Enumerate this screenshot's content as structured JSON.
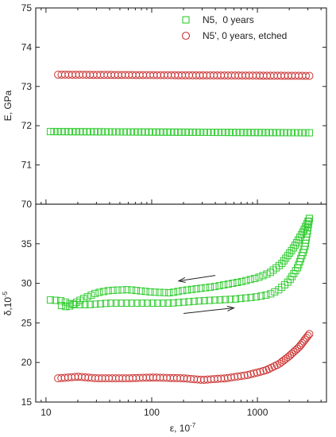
{
  "chart_data": [
    {
      "type": "scatter",
      "panel": "top",
      "xlabel": "",
      "ylabel": "E, GPa",
      "xscale": "log",
      "xlim": [
        8,
        4500
      ],
      "ylim": [
        70,
        75
      ],
      "yticks": [
        70,
        71,
        72,
        73,
        74,
        75
      ],
      "grid": false,
      "legend_position": "top-right",
      "series": [
        {
          "name": "N5,  0 years",
          "marker": "square",
          "color": "#33cc33",
          "x_range": [
            11,
            3100
          ],
          "x_points": 72,
          "y_start": 71.85,
          "y_end": 71.82
        },
        {
          "name": "N5', 0 years, etched",
          "marker": "circle",
          "color": "#cc3333",
          "x_range": [
            13,
            3100
          ],
          "x_points": 72,
          "y_start": 73.3,
          "y_end": 73.27
        }
      ]
    },
    {
      "type": "scatter",
      "panel": "bottom",
      "xlabel": "ε, 10⁻⁷",
      "ylabel": "δ,10⁻⁵",
      "xscale": "log",
      "xlim": [
        8,
        4500
      ],
      "ylim": [
        15,
        40
      ],
      "xticks": [
        10,
        100,
        1000
      ],
      "yticks": [
        15,
        20,
        25,
        30,
        35
      ],
      "grid": false,
      "series": [
        {
          "name": "",
          "marker": "square",
          "color": "#33cc33",
          "curve_lower": [
            [
              11,
              27.9
            ],
            [
              14,
              27.8
            ],
            [
              18,
              27.3
            ],
            [
              25,
              27.3
            ],
            [
              40,
              27.5
            ],
            [
              70,
              27.5
            ],
            [
              150,
              27.5
            ],
            [
              300,
              27.8
            ],
            [
              600,
              28.0
            ],
            [
              1000,
              28.3
            ],
            [
              1300,
              28.6
            ],
            [
              1600,
              29.2
            ],
            [
              2000,
              30.3
            ],
            [
              2400,
              32.0
            ],
            [
              2800,
              34.5
            ],
            [
              3100,
              38.2
            ]
          ],
          "curve_upper": [
            [
              3100,
              38.2
            ],
            [
              2700,
              36.5
            ],
            [
              2200,
              34.5
            ],
            [
              1700,
              32.5
            ],
            [
              1300,
              31.3
            ],
            [
              1000,
              30.7
            ],
            [
              700,
              30.2
            ],
            [
              400,
              29.6
            ],
            [
              200,
              29.1
            ],
            [
              150,
              28.8
            ],
            [
              100,
              28.9
            ],
            [
              60,
              29.2
            ],
            [
              40,
              29.1
            ],
            [
              30,
              28.8
            ],
            [
              22,
              28.0
            ],
            [
              16,
              27.0
            ],
            [
              14,
              27.2
            ]
          ]
        },
        {
          "name": "",
          "marker": "circle",
          "color": "#cc3333",
          "curve": [
            [
              13,
              18.0
            ],
            [
              20,
              18.2
            ],
            [
              30,
              18.0
            ],
            [
              60,
              18.0
            ],
            [
              100,
              18.1
            ],
            [
              200,
              18.0
            ],
            [
              300,
              17.8
            ],
            [
              500,
              18.0
            ],
            [
              800,
              18.4
            ],
            [
              1200,
              19.0
            ],
            [
              1600,
              19.8
            ],
            [
              2000,
              20.8
            ],
            [
              2500,
              22.0
            ],
            [
              3100,
              23.6
            ]
          ]
        }
      ],
      "annotations": [
        {
          "type": "arrow",
          "direction": "left",
          "from": [
            400,
            31.0
          ],
          "to": [
            180,
            30.3
          ]
        },
        {
          "type": "arrow",
          "direction": "right",
          "from": [
            200,
            26.2
          ],
          "to": [
            600,
            26.9
          ]
        }
      ]
    }
  ],
  "tick_labels": {
    "top_y": [
      "70",
      "71",
      "72",
      "73",
      "74",
      "75"
    ],
    "bottom_y": [
      "15",
      "20",
      "25",
      "30",
      "35"
    ],
    "x": [
      "10",
      "100",
      "1000"
    ]
  },
  "legend": [
    {
      "label": "N5,  0 years",
      "marker": "square",
      "color": "#33cc33"
    },
    {
      "label": "N5', 0 years, etched",
      "marker": "circle",
      "color": "#cc3333"
    }
  ],
  "labels": {
    "top_ylabel": "E, GPa",
    "bottom_ylabel_main": "δ,10",
    "bottom_ylabel_exp": "-5",
    "xlabel_main": "ε, 10",
    "xlabel_exp": "-7"
  }
}
